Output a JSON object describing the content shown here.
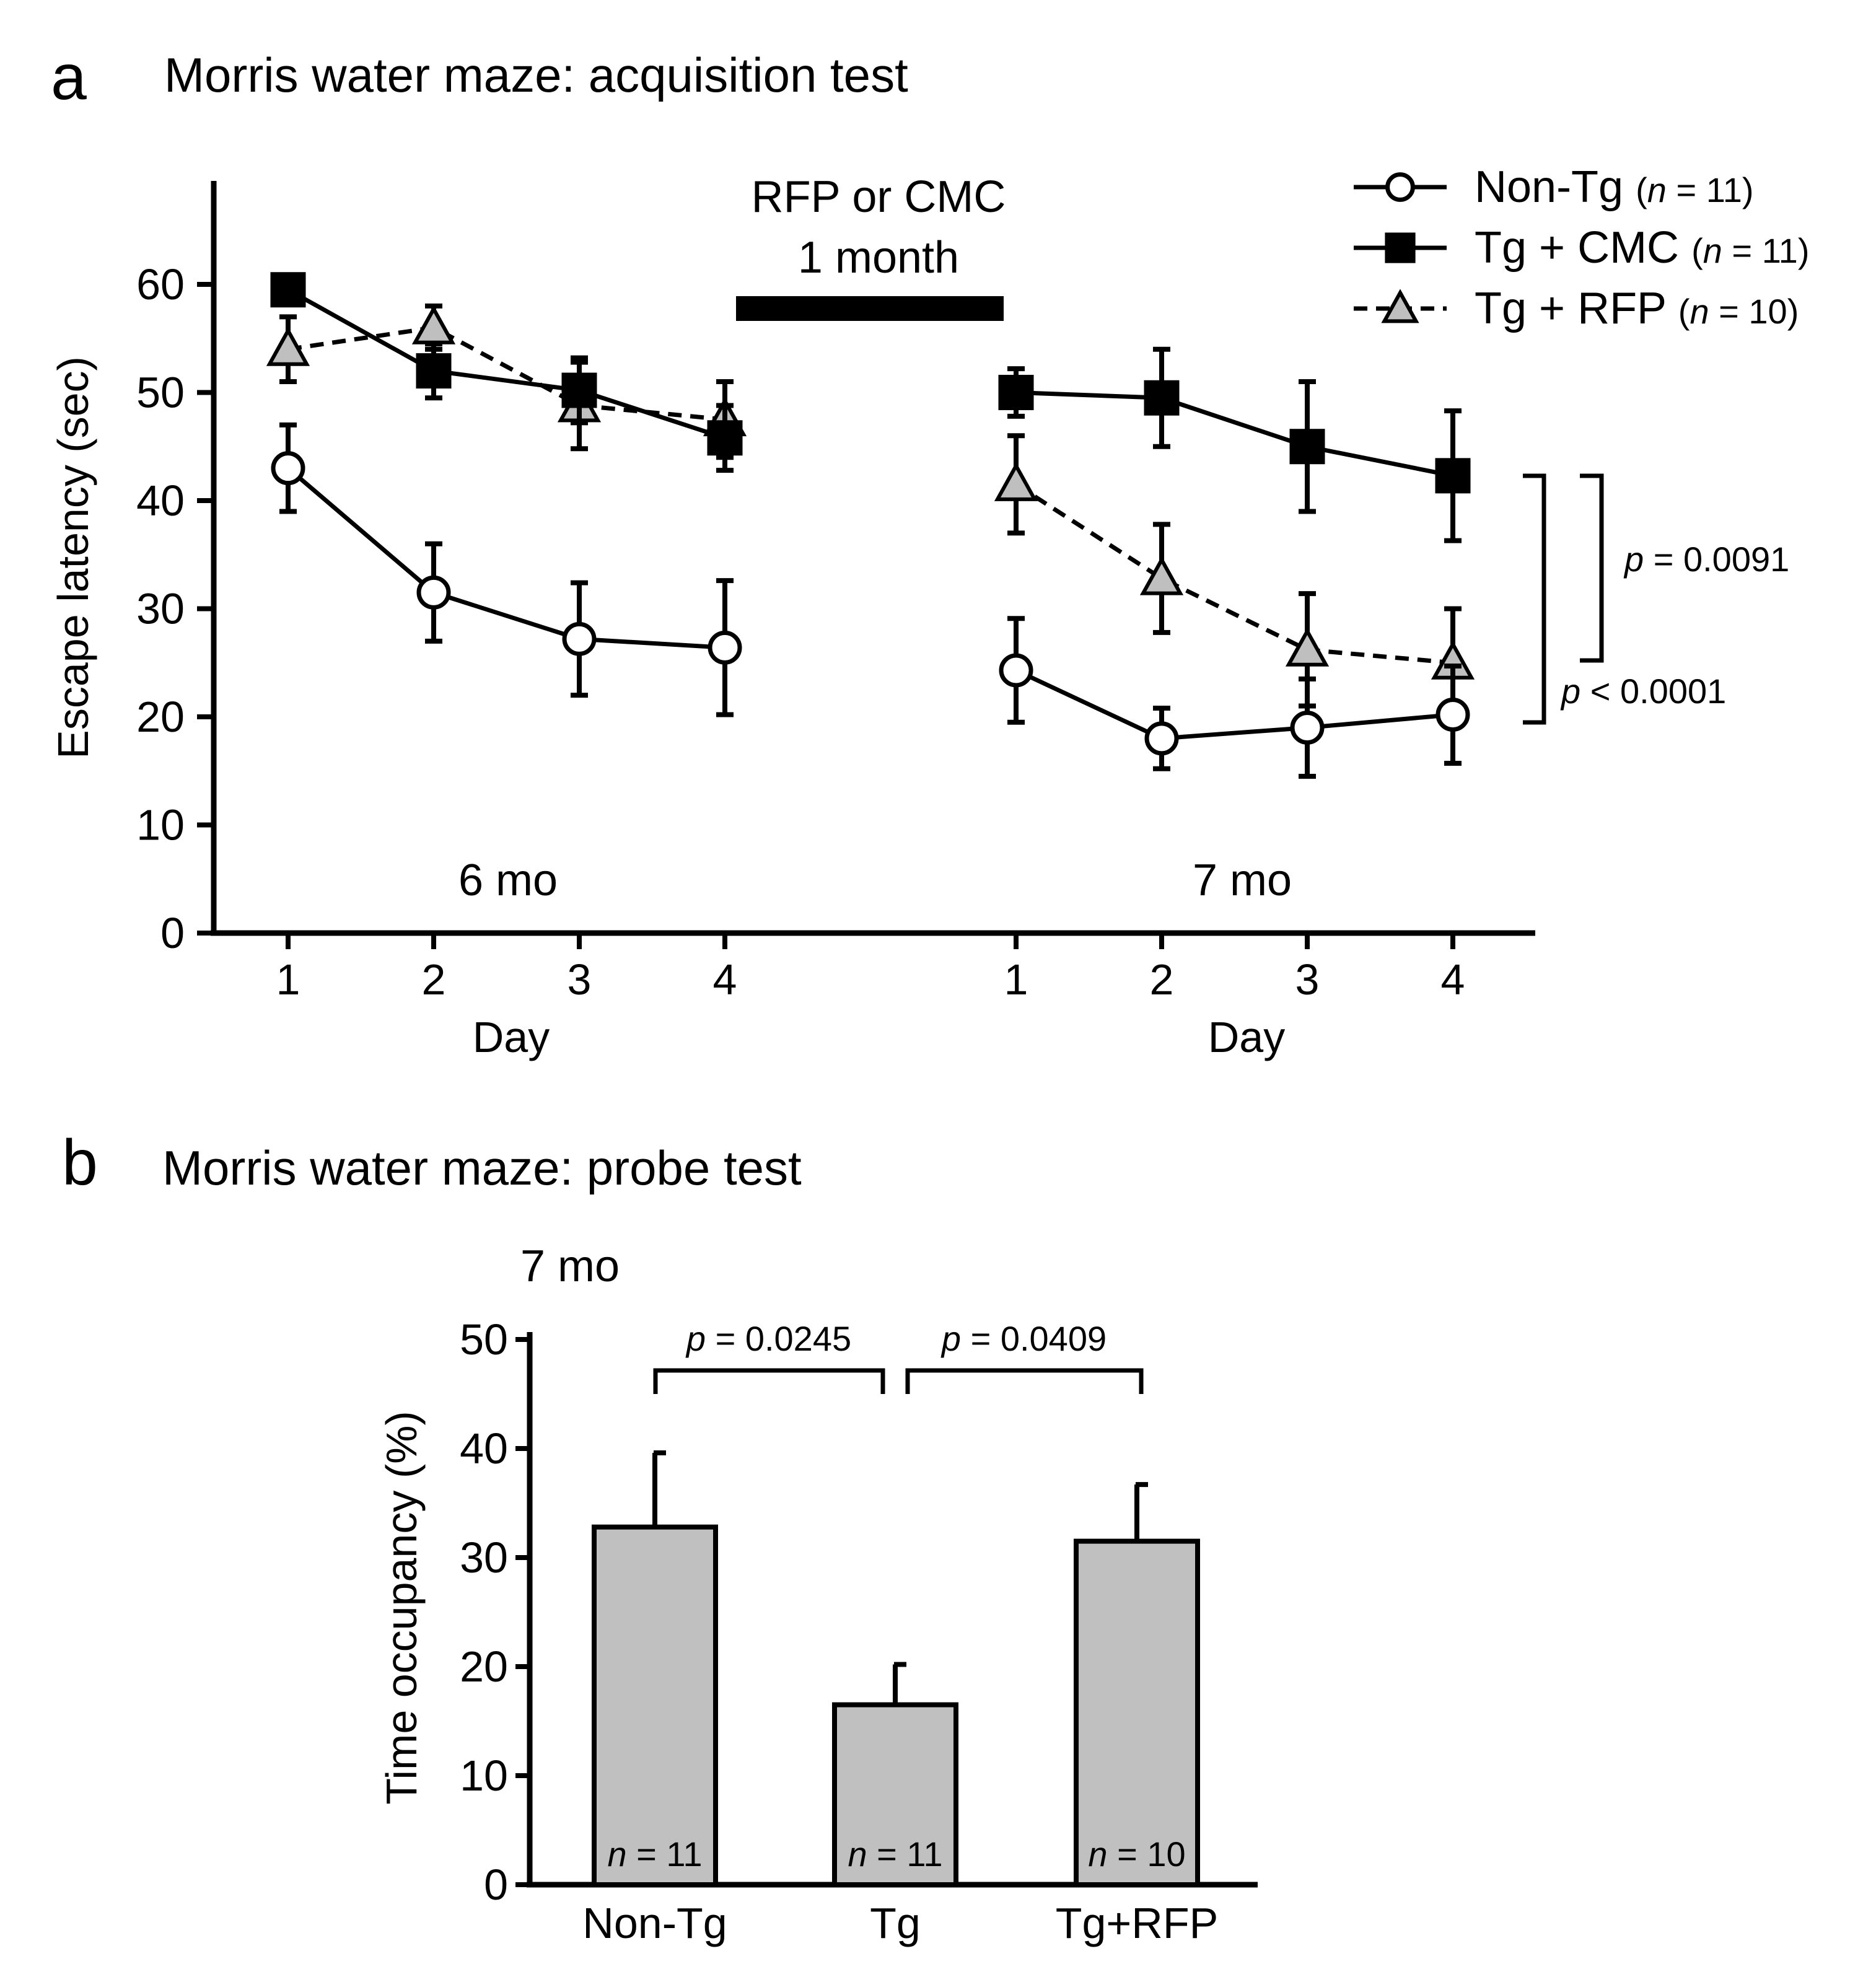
{
  "panel_a": {
    "letter": "a",
    "title": "Morris water maze: acquisition test",
    "treatment_line1": "RFP or CMC",
    "treatment_line2": "1 month",
    "segment1_label": "6 mo",
    "segment2_label": "7 mo",
    "xlabel_left": "Day",
    "xlabel_right": "Day",
    "stats": [
      {
        "p": "p",
        "text": " = 0.0091"
      },
      {
        "p": "p",
        "text": " < 0.0001"
      }
    ]
  },
  "panel_b": {
    "letter": "b",
    "title": "Morris water maze: probe test",
    "subtitle": "7 mo",
    "stats": [
      {
        "p": "p",
        "text": " = 0.0245"
      },
      {
        "p": "p",
        "text": " = 0.0409"
      }
    ]
  },
  "chart_data": [
    {
      "type": "line",
      "title": "Morris water maze: acquisition test",
      "ylabel": "Escape latency (sec)",
      "xlabel": "Day",
      "ylim": [
        0,
        70
      ],
      "yticks": [
        0,
        10,
        20,
        30,
        40,
        50,
        60
      ],
      "segments": [
        {
          "label": "6 mo",
          "days": [
            "1",
            "2",
            "3",
            "4"
          ]
        },
        {
          "label": "7 mo",
          "days": [
            "1",
            "2",
            "3",
            "4"
          ]
        }
      ],
      "legend_position": "top-right",
      "series": [
        {
          "name": "Non-Tg",
          "n_label": "(n = 11)",
          "marker": "circle",
          "fill": "#ffffff",
          "dash": "solid",
          "segment_values": [
            [
              43,
              31.5,
              27.2,
              26.4
            ],
            [
              24.3,
              18,
              19,
              20.2
            ]
          ],
          "segment_errors": [
            [
              4,
              4.5,
              5.2,
              6.2
            ],
            [
              4.8,
              2.8,
              4.5,
              4.5
            ]
          ]
        },
        {
          "name": "Tg + CMC",
          "n_label": "(n = 11)",
          "marker": "square",
          "fill": "#000000",
          "dash": "solid",
          "segment_values": [
            [
              59.5,
              52,
              50.2,
              45.8
            ],
            [
              50,
              49.5,
              45,
              42.3
            ]
          ],
          "segment_errors": [
            [
              1,
              2.5,
              3,
              3
            ],
            [
              2.2,
              4.5,
              6,
              6
            ]
          ]
        },
        {
          "name": "Tg + RFP",
          "n_label": "(n = 10)",
          "marker": "triangle",
          "fill": "#bfbfbf",
          "dash": "dashed",
          "segment_values": [
            [
              54,
              56,
              48.8,
              47.5
            ],
            [
              41.5,
              32.8,
              26.2,
              25
            ]
          ],
          "segment_errors": [
            [
              3,
              2,
              4,
              3.5
            ],
            [
              4.5,
              5,
              5.2,
              5
            ]
          ]
        }
      ]
    },
    {
      "type": "bar",
      "title": "Morris water maze: probe test",
      "subtitle": "7 mo",
      "ylabel": "Time occupancy (%)",
      "ylim": [
        0,
        50
      ],
      "yticks": [
        0,
        10,
        20,
        30,
        40,
        50
      ],
      "categories": [
        "Non-Tg",
        "Tg",
        "Tg+RFP"
      ],
      "values": [
        32.8,
        16.5,
        31.5
      ],
      "errors": [
        6.8,
        3.7,
        5.2
      ],
      "n_labels": [
        "n = 11",
        "n = 11",
        "n = 10"
      ],
      "bar_color": "#c0c0c0"
    }
  ]
}
